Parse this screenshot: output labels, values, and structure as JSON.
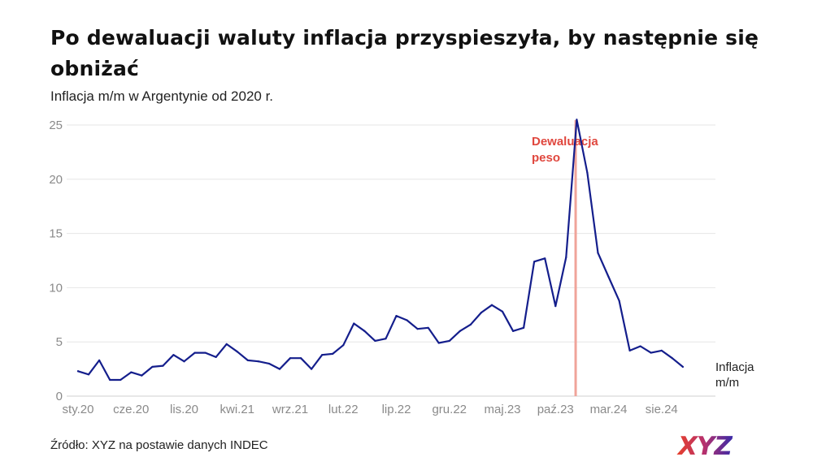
{
  "title": "Po dewaluacji waluty inflacja przyspieszyła, by następnie się obniżać",
  "subtitle": "Inflacja m/m w Argentynie od 2020 r.",
  "source": "Źródło: XYZ na postawie danych INDEC",
  "logo_text": "XYZ",
  "colors": {
    "line": "#141e8c",
    "annotation": "#e0473e",
    "annotation_line": "#f0a49a",
    "grid": "#e6e6e6"
  },
  "chart_data": {
    "type": "line",
    "title": "Po dewaluacji waluty inflacja przyspieszyła, by następnie się obniżać",
    "subtitle": "Inflacja m/m w Argentynie od 2020 r.",
    "ylim": [
      0,
      25
    ],
    "yticks": [
      0,
      5,
      10,
      15,
      20,
      25
    ],
    "grid": true,
    "x_start": "sty.20",
    "xtick_labels": [
      "sty.20",
      "cze.20",
      "lis.20",
      "kwi.21",
      "wrz.21",
      "lut.22",
      "lip.22",
      "gru.22",
      "maj.23",
      "paź.23",
      "mar.24",
      "sie.24"
    ],
    "xtick_index": [
      0,
      5,
      10,
      15,
      20,
      25,
      30,
      35,
      40,
      45,
      50,
      55
    ],
    "series": [
      {
        "name": "Inflacja m/m",
        "name_lines": [
          "Inflacja",
          "m/m"
        ],
        "values": [
          2.3,
          2.0,
          3.3,
          1.5,
          1.5,
          2.2,
          1.9,
          2.7,
          2.8,
          3.8,
          3.2,
          4.0,
          4.0,
          3.6,
          4.8,
          4.1,
          3.3,
          3.2,
          3.0,
          2.5,
          3.5,
          3.5,
          2.5,
          3.8,
          3.9,
          4.7,
          6.7,
          6.0,
          5.1,
          5.3,
          7.4,
          7.0,
          6.2,
          6.3,
          4.9,
          5.1,
          6.0,
          6.6,
          7.7,
          8.4,
          7.8,
          6.0,
          6.3,
          12.4,
          12.7,
          8.3,
          12.8,
          25.5,
          20.6,
          13.2,
          11.0,
          8.8,
          4.2,
          4.6,
          4.0,
          4.2,
          3.5,
          2.7
        ]
      }
    ],
    "annotations": [
      {
        "label_lines": [
          "Dewaluacja",
          "peso"
        ],
        "x_index": 46.9
      }
    ]
  }
}
